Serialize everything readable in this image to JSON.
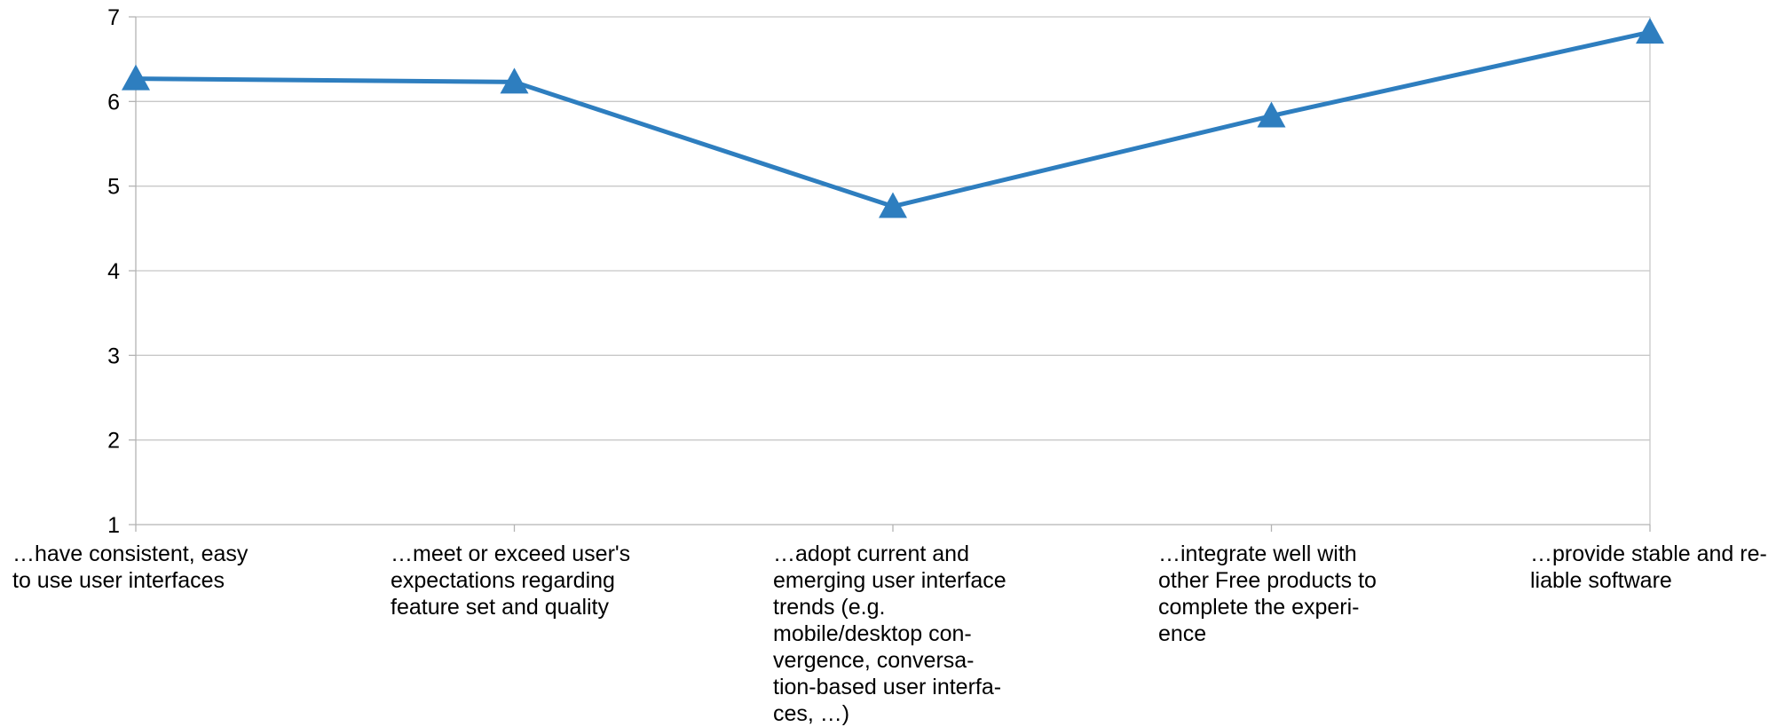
{
  "chart_data": {
    "type": "line",
    "categories": [
      "…have consistent, easy\nto use user interfaces",
      "…meet or exceed user's\nexpectations regarding\nfeature set and quality",
      "…adopt current and\nemerging user interface\ntrends (e.g.\nmobile/desktop con-\nvergence, conversa-\ntion-based user interfa-\nces, …)",
      "…integrate well with\nother Free products to\ncomplete the experi-\nence",
      "…provide stable and re-\nliable software"
    ],
    "series": [
      {
        "values": [
          6.27,
          6.23,
          4.76,
          5.83,
          6.82
        ],
        "color": "#2e7ebf",
        "marker": "triangle"
      }
    ],
    "ylim": [
      1,
      7
    ],
    "yticks": [
      "1",
      "2",
      "3",
      "4",
      "5",
      "6",
      "7"
    ],
    "grid": true,
    "legend": "none"
  }
}
